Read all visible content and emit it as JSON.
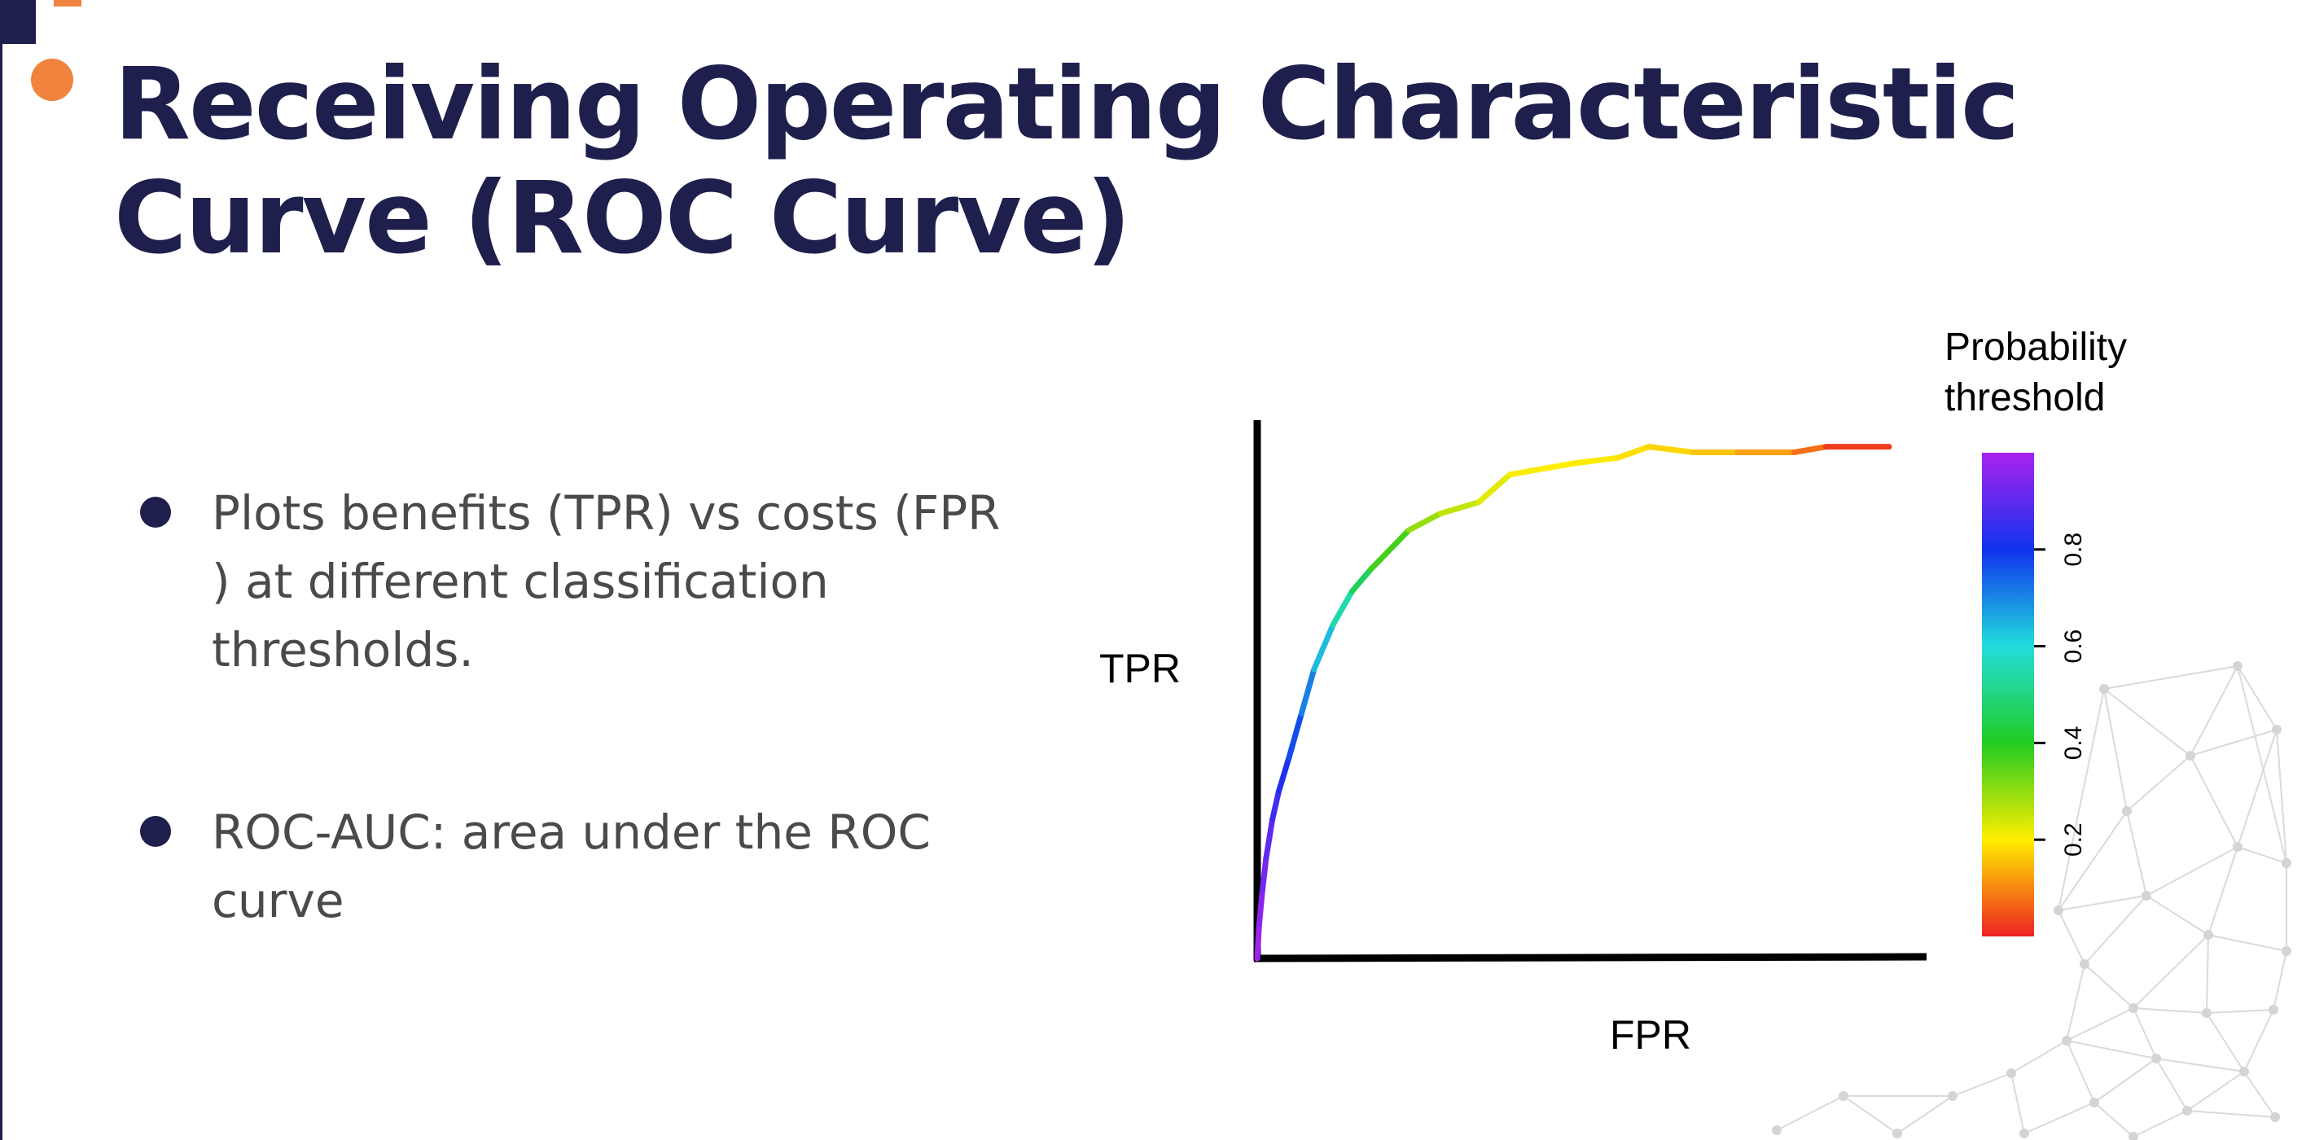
{
  "slide": {
    "title": "Receiving Operating Characteristic Curve (ROC Curve)",
    "bullets": [
      "Plots benefits (TPR) vs costs (FPR ) at different classification thresholds.",
      "ROC-AUC: area under the ROC curve"
    ]
  },
  "colors": {
    "title": "#1f1f4d",
    "accent": "#f0843e",
    "body_text": "#4a4a4a"
  },
  "chart_data": {
    "type": "line",
    "title": "",
    "xlabel": "FPR",
    "ylabel": "TPR",
    "xlim": [
      0,
      1
    ],
    "ylim": [
      0,
      1
    ],
    "grid": false,
    "color_by": "threshold",
    "colorbar": {
      "title": "Probability threshold",
      "range": [
        0,
        1
      ],
      "ticks": [
        0.2,
        0.4,
        0.6,
        0.8
      ],
      "tick_labels": [
        "0.2",
        "0.4",
        "0.6",
        "0.8"
      ],
      "colormap": [
        "#ee2222",
        "#ffee00",
        "#22cc22",
        "#22dddd",
        "#1133ee",
        "#aa22ee"
      ]
    },
    "series": [
      {
        "x": [
          0,
          0.003,
          0.008,
          0.014,
          0.024,
          0.034,
          0.05,
          0.07,
          0.09,
          0.12,
          0.15,
          0.18,
          0.24,
          0.29,
          0.35,
          0.4,
          0.45,
          0.5,
          0.57,
          0.62,
          0.69,
          0.76,
          0.85,
          0.9,
          1.0
        ],
        "y": [
          0,
          0.06,
          0.12,
          0.18,
          0.25,
          0.3,
          0.36,
          0.44,
          0.52,
          0.6,
          0.66,
          0.7,
          0.77,
          0.8,
          0.82,
          0.87,
          0.88,
          0.89,
          0.9,
          0.92,
          0.91,
          0.91,
          0.91,
          0.92,
          0.92
        ],
        "threshold": [
          1.0,
          0.97,
          0.95,
          0.92,
          0.88,
          0.84,
          0.8,
          0.74,
          0.68,
          0.6,
          0.5,
          0.42,
          0.32,
          0.27,
          0.24,
          0.21,
          0.2,
          0.2,
          0.19,
          0.18,
          0.17,
          0.15,
          0.1,
          0.05,
          0.0
        ]
      }
    ]
  }
}
